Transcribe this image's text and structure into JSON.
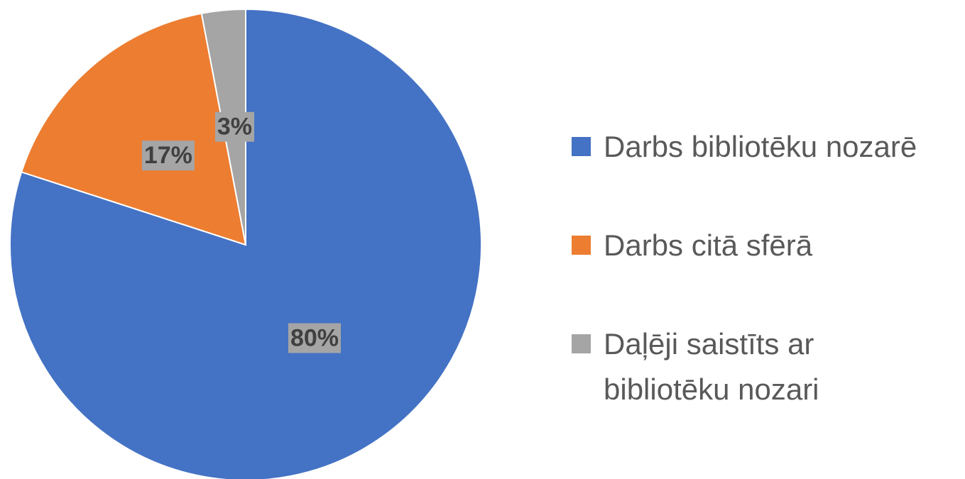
{
  "chart_data": {
    "type": "pie",
    "categories": [
      "Darbs bibliotēku nozarē",
      "Darbs citā sfērā",
      "Daļēji saistīts ar bibliotēku nozari"
    ],
    "values": [
      80,
      17,
      3
    ],
    "value_labels": [
      "80%",
      "17%",
      "3%"
    ],
    "colors": [
      "#4472c4",
      "#ed7d31",
      "#a5a5a5"
    ],
    "legend": "right"
  }
}
